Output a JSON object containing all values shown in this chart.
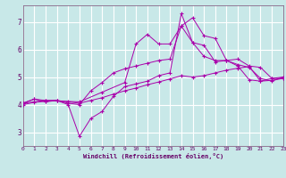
{
  "xlabel": "Windchill (Refroidissement éolien,°C)",
  "bg_color": "#c8e8e8",
  "grid_color": "#ffffff",
  "line_color": "#aa00aa",
  "xmin": 0,
  "xmax": 23,
  "ymin": 2.5,
  "ymax": 7.6,
  "yticks": [
    3,
    4,
    5,
    6,
    7
  ],
  "xticks": [
    0,
    1,
    2,
    3,
    4,
    5,
    6,
    7,
    8,
    9,
    10,
    11,
    12,
    13,
    14,
    15,
    16,
    17,
    18,
    19,
    20,
    21,
    22,
    23
  ],
  "lines": [
    {
      "x": [
        0,
        1,
        2,
        3,
        4,
        5,
        6,
        7,
        8,
        9,
        10,
        11,
        12,
        13,
        14,
        15,
        16,
        17,
        18,
        19,
        20,
        21,
        22,
        23
      ],
      "y": [
        4.05,
        4.2,
        4.1,
        4.15,
        4.0,
        2.85,
        3.5,
        3.75,
        4.3,
        4.65,
        4.75,
        4.85,
        5.05,
        5.15,
        7.3,
        6.25,
        5.75,
        5.6,
        5.6,
        5.4,
        4.9,
        4.85,
        4.95,
        4.95
      ]
    },
    {
      "x": [
        0,
        1,
        2,
        3,
        4,
        5,
        6,
        7,
        8,
        9,
        10,
        11,
        12,
        13,
        14,
        15,
        16,
        17,
        18,
        19,
        20,
        21,
        22,
        23
      ],
      "y": [
        4.05,
        4.2,
        4.15,
        4.15,
        4.05,
        4.0,
        4.5,
        4.8,
        5.15,
        5.3,
        5.4,
        5.5,
        5.6,
        5.65,
        6.85,
        6.25,
        6.15,
        5.55,
        5.6,
        5.45,
        5.35,
        4.95,
        4.85,
        5.0
      ]
    },
    {
      "x": [
        0,
        2,
        5,
        7,
        9,
        10,
        11,
        12,
        13,
        14,
        15,
        16,
        17,
        18,
        19,
        20,
        21,
        22,
        23
      ],
      "y": [
        4.05,
        4.15,
        4.1,
        4.45,
        4.8,
        6.2,
        6.55,
        6.2,
        6.2,
        6.85,
        7.15,
        6.5,
        6.4,
        5.6,
        5.65,
        5.4,
        5.35,
        4.95,
        5.0
      ]
    },
    {
      "x": [
        0,
        1,
        2,
        3,
        4,
        5,
        6,
        7,
        8,
        9,
        10,
        11,
        12,
        13,
        14,
        15,
        16,
        17,
        18,
        19,
        20,
        21,
        22,
        23
      ],
      "y": [
        4.0,
        4.08,
        4.12,
        4.15,
        4.1,
        4.05,
        4.15,
        4.25,
        4.38,
        4.5,
        4.6,
        4.72,
        4.82,
        4.93,
        5.05,
        5.0,
        5.05,
        5.15,
        5.25,
        5.32,
        5.38,
        4.85,
        4.88,
        4.95
      ]
    }
  ]
}
